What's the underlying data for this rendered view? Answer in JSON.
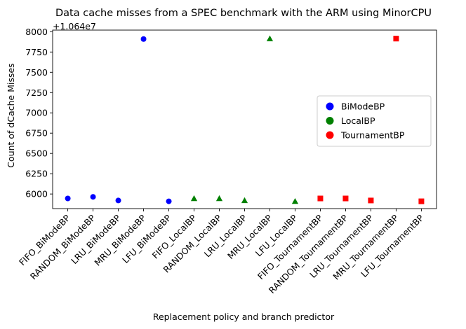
{
  "chart_data": {
    "type": "scatter",
    "title": "Data cache misses from a SPEC benchmark with the ARM using MinorCPU",
    "xlabel": "Replacement policy and branch predictor",
    "ylabel": "Count of dCache Misses",
    "offset_label": "+1.064e7",
    "y_offset": 10640000,
    "categories": [
      "FIFO_BiModeBP",
      "RANDOM_BiModeBP",
      "LRU_BiModeBP",
      "MRU_BiModeBP",
      "LFU_BiModeBP",
      "FIFO_LocalBP",
      "RANDOM_LocalBP",
      "LRU_LocalBP",
      "MRU_LocalBP",
      "LFU_LocalBP",
      "FIFO_TournamentBP",
      "RANDOM_TournamentBP",
      "LRU_TournamentBP",
      "MRU_TournamentBP",
      "LFU_TournamentBP"
    ],
    "series": [
      {
        "name": "BiModeBP",
        "color": "#0000ff",
        "marker": "circle",
        "x_index": [
          0,
          1,
          2,
          3,
          4
        ],
        "values": [
          10645945,
          10645965,
          10645920,
          10647910,
          10645910
        ]
      },
      {
        "name": "LocalBP",
        "color": "#008000",
        "marker": "triangle",
        "x_index": [
          5,
          6,
          7,
          8,
          9
        ],
        "values": [
          10645945,
          10645945,
          10645920,
          10647915,
          10645910
        ]
      },
      {
        "name": "TournamentBP",
        "color": "#ff0000",
        "marker": "square",
        "x_index": [
          10,
          11,
          12,
          13,
          14
        ],
        "values": [
          10645945,
          10645945,
          10645920,
          10647915,
          10645910
        ]
      }
    ],
    "yticks": [
      6000,
      6250,
      6500,
      6750,
      7000,
      7250,
      7500,
      7750,
      8000
    ],
    "ylim": [
      5820,
      8020
    ],
    "legend": {
      "position": "center-right",
      "entries": [
        "BiModeBP",
        "LocalBP",
        "TournamentBP"
      ]
    },
    "grid": false
  }
}
